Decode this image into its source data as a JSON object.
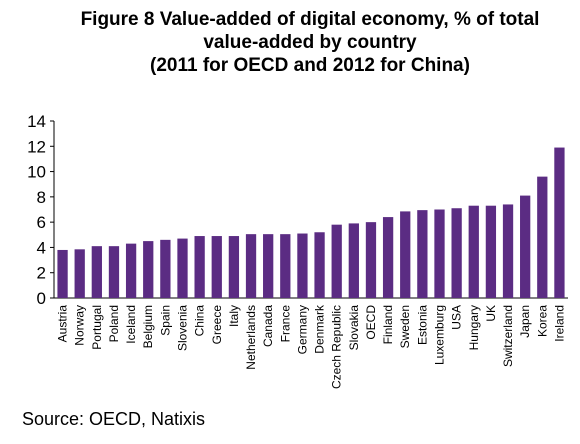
{
  "chart_data": {
    "type": "bar",
    "title_lines": [
      "Figure 8 Value-added of digital economy, % of total",
      "value-added by country",
      "(2011 for OECD and 2012 for China)"
    ],
    "source": "Source: OECD, Natixis",
    "xlabel": "",
    "ylabel": "",
    "ylim": [
      0,
      14
    ],
    "yticks": [
      0,
      2,
      4,
      6,
      8,
      10,
      12,
      14
    ],
    "grid": false,
    "bar_color": "#5b2c83",
    "categories": [
      "Austria",
      "Norway",
      "Portugal",
      "Poland",
      "Iceland",
      "Belgium",
      "Spain",
      "Slovenia",
      "China",
      "Greece",
      "Italy",
      "Netherlands",
      "Canada",
      "France",
      "Germany",
      "Denmark",
      "Czech Republic",
      "Slovakia",
      "OECD",
      "Finland",
      "Sweden",
      "Estonia",
      "Luxemburg",
      "USA",
      "Hungary",
      "UK",
      "Switzerland",
      "Japan",
      "Korea",
      "Ireland"
    ],
    "values": [
      3.8,
      3.85,
      4.1,
      4.1,
      4.3,
      4.5,
      4.6,
      4.7,
      4.9,
      4.9,
      4.9,
      5.05,
      5.05,
      5.05,
      5.1,
      5.2,
      5.8,
      5.9,
      6.0,
      6.4,
      6.85,
      6.95,
      7.0,
      7.1,
      7.3,
      7.3,
      7.4,
      8.1,
      9.6,
      11.9
    ]
  }
}
